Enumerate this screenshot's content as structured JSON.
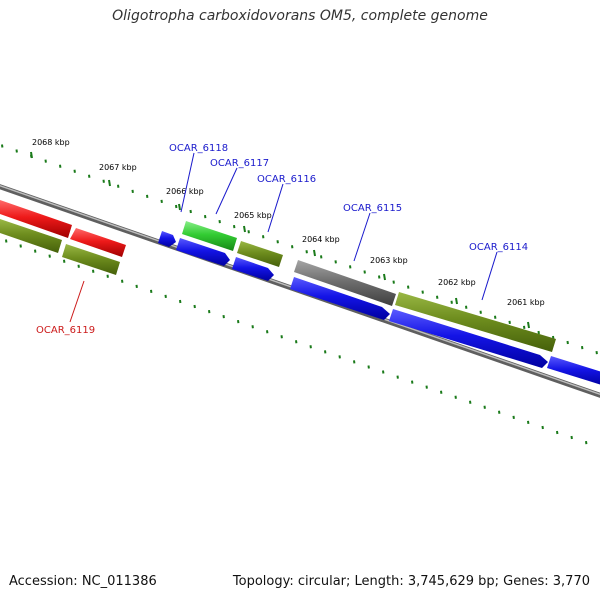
{
  "title": "Oligotropha carboxidovorans OM5, complete genome",
  "footer": {
    "accession": "Accession: NC_011386",
    "summary": "Topology: circular; Length: 3,745,629 bp; Genes: 3,770"
  },
  "colors": {
    "red": "#e11212",
    "olive": "#6b8a1c",
    "green": "#33cc33",
    "blue": "#1414e6",
    "gray": "#6e6e6e",
    "tick": "#1a7a1a",
    "labelBlue": "#1a1acc",
    "labelRed": "#cc1a1a"
  },
  "scale_labels": [
    "2068 kbp",
    "2067 kbp",
    "2066 kbp",
    "2065 kbp",
    "2064 kbp",
    "2063 kbp",
    "2062 kbp",
    "2061 kbp"
  ],
  "gene_labels": [
    "OCAR_6118",
    "OCAR_6117",
    "OCAR_6116",
    "OCAR_6115",
    "OCAR_6114",
    "OCAR_6119"
  ]
}
